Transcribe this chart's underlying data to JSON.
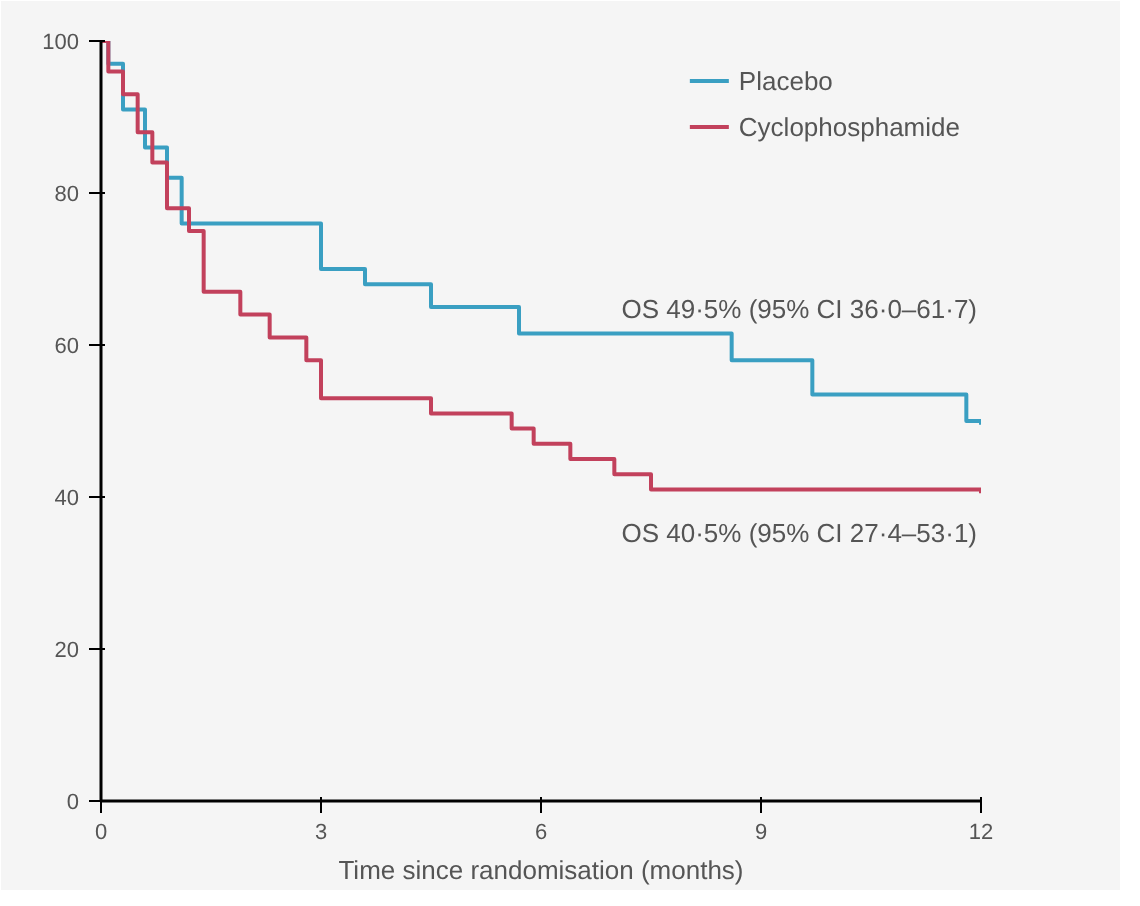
{
  "chart_data": {
    "type": "step",
    "xlabel": "Time since randomisation (months)",
    "xlim": [
      0,
      12
    ],
    "xticks": [
      0,
      3,
      6,
      9,
      12
    ],
    "ylim": [
      0,
      100
    ],
    "yticks": [
      0,
      20,
      40,
      60,
      80,
      100
    ],
    "grid": false,
    "legend": "top right",
    "line_style": "solid",
    "marker": "none",
    "series": [
      {
        "name": "Placebo",
        "color": "#3a9fc2",
        "x": [
          0,
          0.1,
          0.3,
          0.6,
          0.9,
          1.1,
          3.0,
          3.6,
          4.5,
          5.7,
          8.6,
          9.7,
          11.8,
          12
        ],
        "values": [
          100,
          97,
          91,
          86,
          82,
          76,
          70,
          68,
          65,
          61.5,
          58,
          53.5,
          50,
          49.5
        ]
      },
      {
        "name": "Cyclophosphamide",
        "color": "#c2415c",
        "x": [
          0,
          0.1,
          0.3,
          0.5,
          0.7,
          0.9,
          1.2,
          1.4,
          1.9,
          2.3,
          2.8,
          3.0,
          4.5,
          5.6,
          5.9,
          6.4,
          7.0,
          7.5,
          12
        ],
        "values": [
          100,
          96,
          93,
          88,
          84,
          78,
          75,
          67,
          64,
          61,
          58,
          53,
          51,
          49,
          47,
          45,
          43,
          41,
          40.5
        ]
      }
    ],
    "annotations": [
      "OS 49·5% (95% CI 36·0–61·7)",
      "OS 40·5% (95% CI 27·4–53·1)"
    ]
  }
}
